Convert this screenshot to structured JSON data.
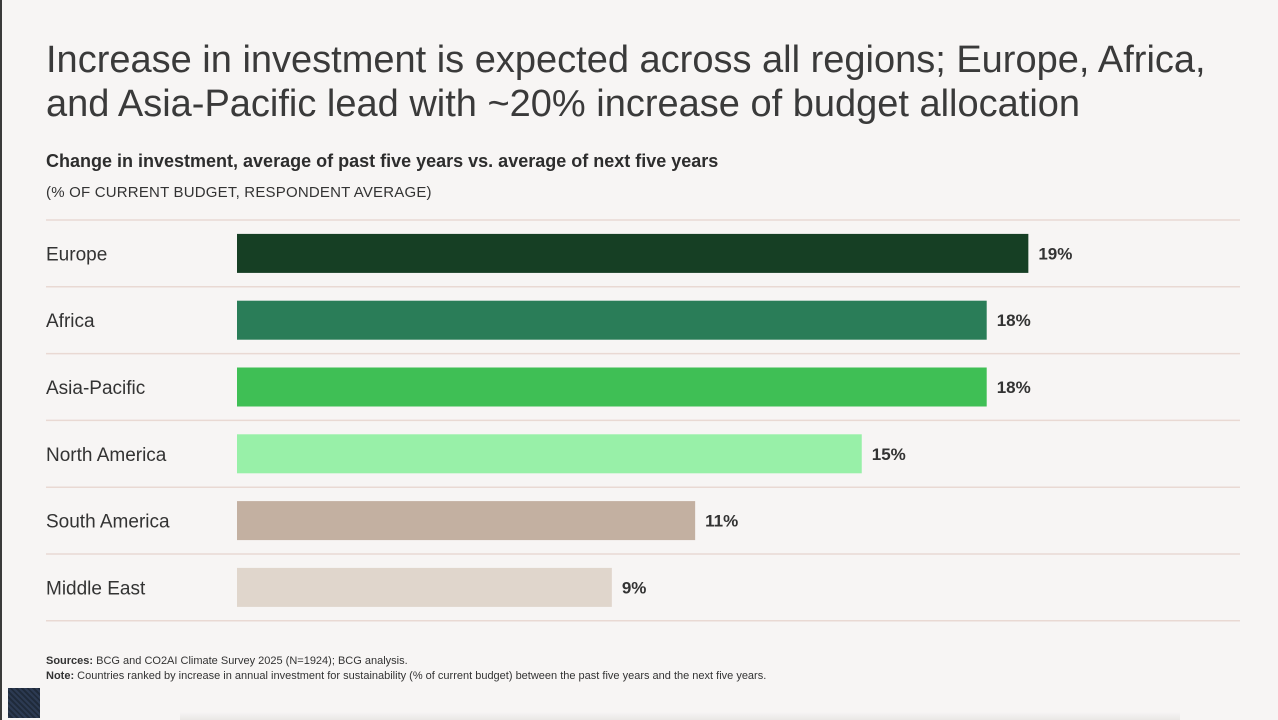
{
  "headline": {
    "line1": "Increase in investment is expected across all regions; Europe, Africa,",
    "line2": "and Asia-Pacific lead with ~20% increase of budget allocation"
  },
  "chart_data": {
    "type": "bar",
    "orientation": "horizontal",
    "title": "Change in investment, average of past five years vs. average of next five years",
    "subtitle": "(% OF CURRENT BUDGET, RESPONDENT AVERAGE)",
    "categories": [
      "Europe",
      "Africa",
      "Asia-Pacific",
      "North America",
      "South America",
      "Middle East"
    ],
    "values": [
      19,
      18,
      18,
      15,
      11,
      9
    ],
    "value_labels": [
      "19%",
      "18%",
      "18%",
      "15%",
      "11%",
      "9%"
    ],
    "colors": [
      "#163f24",
      "#2a7d58",
      "#3fbf55",
      "#98f0a8",
      "#c3b0a1",
      "#e0d6cc"
    ],
    "xlim": [
      0,
      20.5
    ],
    "grid": false,
    "legend": "none"
  },
  "footer": {
    "sources_label": "Sources:",
    "sources_text": "BCG and CO2AI Climate Survey 2025 (N=1924); BCG analysis.",
    "note_label": "Note:",
    "note_text": "Countries ranked by increase in annual investment for sustainability (% of current budget) between the past five years and the next five years."
  }
}
